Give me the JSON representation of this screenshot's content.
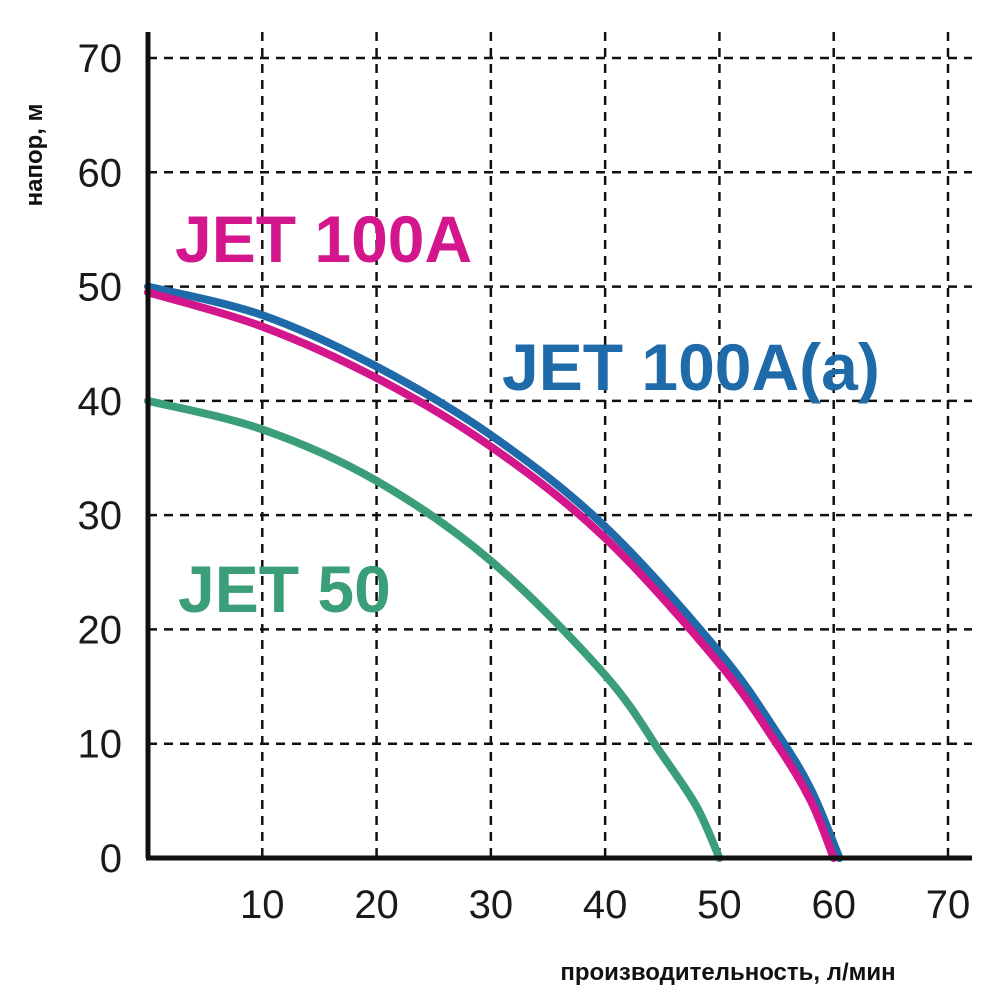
{
  "chart_data": {
    "type": "line",
    "title": "",
    "xlabel": "производительность, л/мин",
    "ylabel": "напор, м",
    "xlim": [
      0,
      70
    ],
    "ylim": [
      0,
      70
    ],
    "x_ticks": [
      10,
      20,
      30,
      40,
      50,
      60,
      70
    ],
    "y_ticks": [
      0,
      10,
      20,
      30,
      40,
      50,
      60,
      70
    ],
    "grid": true,
    "series": [
      {
        "name": "JET 100A",
        "color": "#d4168c",
        "x": [
          0,
          10,
          20,
          30,
          40,
          50,
          55,
          58,
          60
        ],
        "y": [
          49.5,
          46.5,
          42,
          36,
          28,
          17,
          10,
          5,
          0
        ]
      },
      {
        "name": "JET 100A(a)",
        "color": "#1f6aa8",
        "x": [
          0,
          10,
          20,
          30,
          40,
          50,
          55,
          58,
          60.5
        ],
        "y": [
          50,
          47.5,
          43,
          37,
          29,
          18,
          11,
          6,
          0
        ]
      },
      {
        "name": "JET 50",
        "color": "#3a9e78",
        "x": [
          0,
          10,
          20,
          30,
          40,
          45,
          48,
          50
        ],
        "y": [
          40,
          37.5,
          33,
          26,
          16,
          9,
          4.5,
          0
        ]
      }
    ]
  }
}
